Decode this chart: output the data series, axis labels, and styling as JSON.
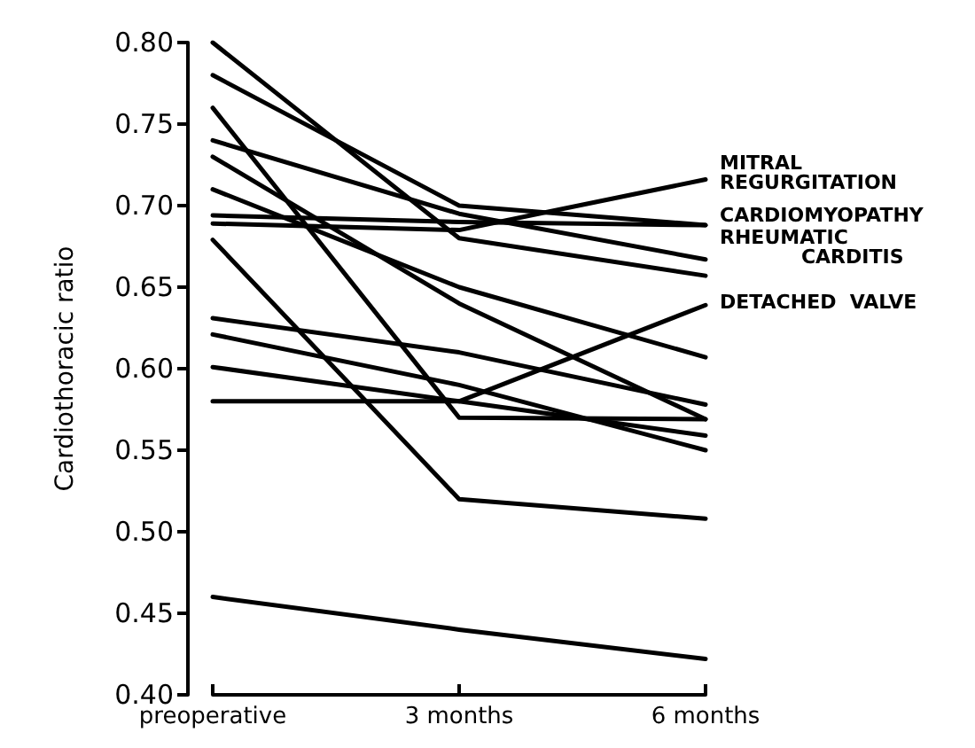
{
  "chart_data": {
    "type": "line",
    "ylabel": "Cardiothoracic ratio",
    "categories": [
      "preoperative",
      "3 months",
      "6 months"
    ],
    "series": [
      {
        "color": "#000000",
        "values": [
          0.8,
          0.68,
          0.657
        ]
      },
      {
        "color": "#000000",
        "values": [
          0.78,
          0.7,
          0.688
        ]
      },
      {
        "color": "#000000",
        "values": [
          0.76,
          0.57,
          0.569
        ]
      },
      {
        "color": "#000000",
        "values": [
          0.74,
          0.695,
          0.667
        ]
      },
      {
        "color": "#000000",
        "values": [
          0.73,
          0.64,
          0.569
        ]
      },
      {
        "color": "#000000",
        "values": [
          0.71,
          0.65,
          0.607
        ]
      },
      {
        "color": "#000000",
        "values": [
          0.694,
          0.69,
          0.688
        ]
      },
      {
        "color": "#000000",
        "values": [
          0.689,
          0.685,
          0.716
        ]
      },
      {
        "color": "#000000",
        "values": [
          0.679,
          0.52,
          0.508
        ]
      },
      {
        "color": "#000000",
        "values": [
          0.631,
          0.61,
          0.578
        ]
      },
      {
        "color": "#000000",
        "values": [
          0.621,
          0.59,
          0.55
        ]
      },
      {
        "color": "#000000",
        "values": [
          0.601,
          0.58,
          0.559
        ]
      },
      {
        "color": "#000000",
        "values": [
          0.58,
          0.58,
          0.639
        ]
      },
      {
        "color": "#000000",
        "values": [
          0.46,
          0.44,
          0.422
        ]
      }
    ],
    "ylim": [
      0.4,
      0.8
    ],
    "yticks": [
      {
        "value": 0.4,
        "label": "0.40"
      },
      0.45,
      {
        "value": 0.5,
        "label": "0.50"
      },
      0.55,
      {
        "value": 0.6,
        "label": "0.60"
      },
      0.65,
      {
        "value": 0.7,
        "label": "0.70"
      },
      0.75,
      {
        "value": 0.8,
        "label": "0.80"
      }
    ],
    "annotations": [
      {
        "text": "MITRAL\nREGURGITATION",
        "x": "6 months",
        "y": 0.72
      },
      {
        "text": "CARDIOMYOPATHY",
        "x": "6 months",
        "y": 0.694
      },
      "RHEUMATIC\n            CARDITIS",
      {
        "text": "DETACHED  VALVE",
        "x": "6 months",
        "y": 0.641
      }
    ],
    "grid": false,
    "marker": "none",
    "line_style": "solid"
  }
}
